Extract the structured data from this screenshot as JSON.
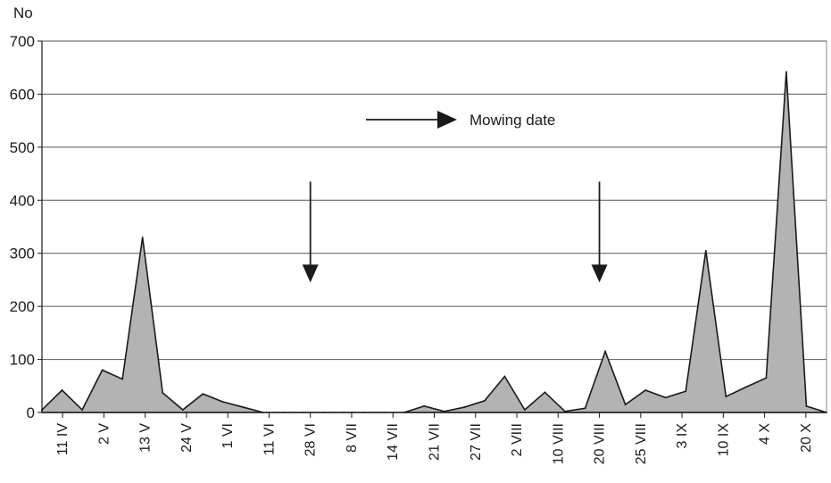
{
  "chart_data": {
    "type": "area",
    "ylabel": "No",
    "ylim": [
      0,
      700
    ],
    "yticks": [
      0,
      100,
      200,
      300,
      400,
      500,
      600,
      700
    ],
    "grid": true,
    "fill_color": "#b3b3b3",
    "line_color": "#1a1a1a",
    "xtick_labels": [
      "11 IV",
      "2 V",
      "13 V",
      "24 V",
      "1 VI",
      "11 VI",
      "28 VI",
      "8 VII",
      "14 VII",
      "21 VII",
      "27 VII",
      "2 VIII",
      "10 VIII",
      "20 VIII",
      "25 VIII",
      "3 IX",
      "10 IX",
      "4 X",
      "20 X"
    ],
    "values": [
      5,
      42,
      5,
      80,
      63,
      330,
      37,
      5,
      35,
      20,
      10,
      0,
      0,
      0,
      0,
      0,
      0,
      0,
      0,
      12,
      2,
      10,
      22,
      68,
      5,
      38,
      2,
      8,
      115,
      15,
      42,
      28,
      40,
      305,
      30,
      48,
      65,
      642,
      12,
      0
    ],
    "annotations": {
      "legend_label": "Mowing date",
      "mowing_arrows": [
        "28 VI",
        "20 VIII"
      ]
    }
  }
}
